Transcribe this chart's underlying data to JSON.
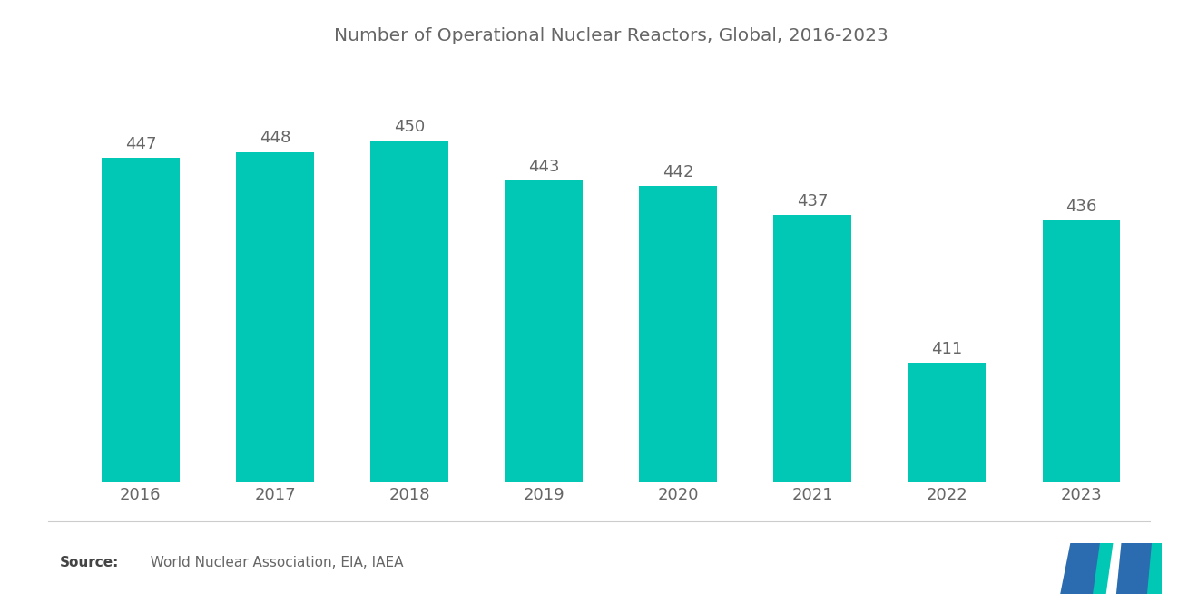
{
  "title": "Number of Operational Nuclear Reactors, Global, 2016-2023",
  "years": [
    "2016",
    "2017",
    "2018",
    "2019",
    "2020",
    "2021",
    "2022",
    "2023"
  ],
  "values": [
    447,
    448,
    450,
    443,
    442,
    437,
    411,
    436
  ],
  "bar_color": "#00C8B4",
  "background_color": "#ffffff",
  "title_fontsize": 14.5,
  "label_fontsize": 13,
  "value_fontsize": 13,
  "source_bold": "Source:",
  "source_rest": "  World Nuclear Association, EIA, IAEA",
  "ylim_min": 390,
  "ylim_max": 462,
  "bar_width": 0.58,
  "title_color": "#666666",
  "tick_color": "#666666",
  "value_color": "#666666",
  "separator_color": "#cccccc",
  "logo_blue": "#2B6CB0",
  "logo_teal": "#00C8B4"
}
